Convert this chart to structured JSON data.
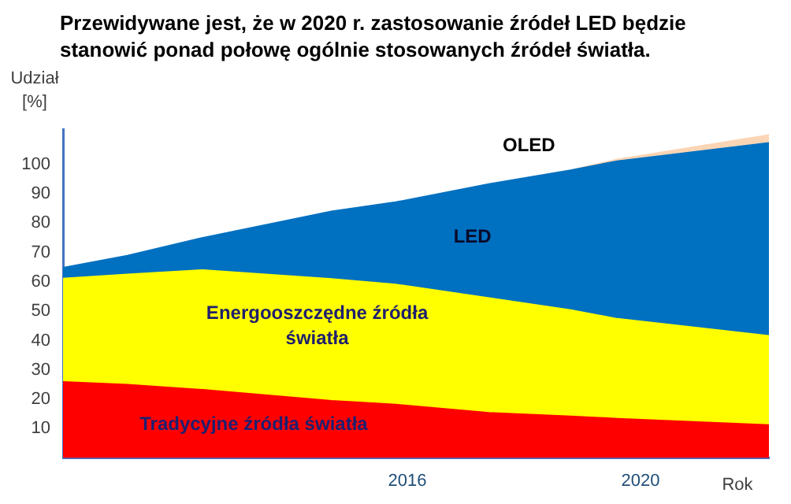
{
  "chart_data": {
    "type": "area",
    "title": "Przewidywane jest, że w 2020 r.  zastosowanie źródeł LED będzie stanowić ponad połowę ogólnie stosowanych źródeł światła.",
    "ylabel": "Udział [%]",
    "xlabel": "Rok",
    "stacked": true,
    "legend": false,
    "grid": false,
    "marker": "none",
    "x": [
      2010.1,
      2011.2,
      2012.5,
      2014.7,
      2015.8,
      2017.4,
      2018.8,
      2019.6,
      2022.2
    ],
    "series": [
      {
        "name": "Tradycyjne źródła światła",
        "color": "#ff0000",
        "values": [
          25.9,
          25,
          23.2,
          19.5,
          18.2,
          15.4,
          14.2,
          13.4,
          11.2
        ]
      },
      {
        "name": "Energooszczędne źródła światła",
        "color": "#ffff00",
        "values": [
          35.2,
          37.5,
          40.8,
          41.5,
          40.9,
          39.1,
          36.2,
          34.0,
          30.4
        ]
      },
      {
        "name": "LED",
        "color": "#0070c0",
        "values": [
          3.7,
          6.4,
          11,
          23,
          28,
          38.8,
          47.6,
          53.7,
          65.7
        ]
      },
      {
        "name": "OLED",
        "color": "#fcd5b5",
        "values": [
          null,
          null,
          null,
          null,
          null,
          null,
          0,
          0.6,
          2.7
        ]
      }
    ],
    "xlim": [
      2010.1,
      2022.2
    ],
    "xticks": [
      2016,
      2020
    ],
    "ylim": [
      0,
      112
    ],
    "yticks": [
      10,
      20,
      30,
      40,
      50,
      60,
      70,
      80,
      90,
      100
    ]
  }
}
